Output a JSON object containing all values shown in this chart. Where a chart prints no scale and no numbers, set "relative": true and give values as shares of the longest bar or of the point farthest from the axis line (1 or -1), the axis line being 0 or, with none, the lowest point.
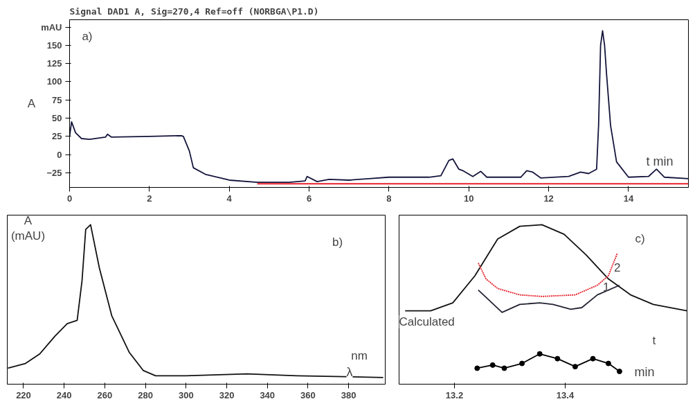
{
  "chart_data": [
    {
      "type": "line",
      "title": "Signal DAD1 A, Sig=270,4 Ref=off (NORBGA\\P1.D)",
      "xlabel": "t min",
      "ylabel": "A",
      "annotations": [
        "a)"
      ],
      "xlim": [
        0,
        15.5
      ],
      "ylim": [
        -45,
        185
      ],
      "xticks": [
        0,
        2,
        4,
        6,
        8,
        10,
        12,
        14
      ],
      "yticks": [
        -25,
        0,
        25,
        50,
        75,
        100,
        125,
        150,
        {
          "value": 175,
          "label": "mAU"
        }
      ],
      "grid": false,
      "series": [
        {
          "color": "#14143c",
          "x": [
            0,
            0.05,
            0.15,
            0.3,
            0.5,
            0.9,
            0.95,
            1.05,
            2,
            2.8,
            2.85,
            3.0,
            3.1,
            3.4,
            4.0,
            4.7,
            5.5,
            5.9,
            5.95,
            6.2,
            6.5,
            7,
            7.5,
            8.0,
            9.0,
            9.3,
            9.5,
            9.6,
            9.75,
            9.85,
            10.1,
            10.3,
            10.45,
            11.3,
            11.45,
            11.6,
            11.8,
            12.5,
            12.8,
            13.0,
            13.2,
            13.25,
            13.3,
            13.35,
            13.4,
            13.45,
            13.55,
            13.7,
            14.0,
            14.5,
            14.7,
            14.9,
            15.5
          ],
          "values": [
            25,
            45,
            30,
            22,
            21,
            24,
            28,
            24,
            25,
            26,
            25,
            5,
            -18,
            -27,
            -35,
            -38,
            -38,
            -36,
            -30,
            -37,
            -34,
            -35,
            -33,
            -31,
            -31,
            -29,
            -8,
            -6,
            -20,
            -22,
            -30,
            -23,
            -31,
            -31,
            -22,
            -24,
            -32,
            -30,
            -24,
            -26,
            -20,
            40,
            150,
            170,
            150,
            110,
            40,
            -10,
            -31,
            -30,
            -20,
            -31,
            -33
          ]
        },
        {
          "color": "#e8202a",
          "x": [
            4.7,
            15.5
          ],
          "values": [
            -40,
            -40
          ]
        }
      ]
    },
    {
      "type": "line",
      "relative": true,
      "xlabel": "λ",
      "ylabel": "A (mAU)",
      "annotations": [
        "b)",
        "nm"
      ],
      "xlim": [
        212,
        398
      ],
      "xticks": [
        220,
        240,
        260,
        280,
        300,
        320,
        340,
        360,
        380
      ],
      "tick_labels": "x",
      "grid": false,
      "series": [
        {
          "color": "#111111",
          "x": [
            212.3,
            221,
            228,
            235.4,
            241.5,
            246.4,
            248.8,
            250.6,
            253,
            257.3,
            263.4,
            272,
            279,
            285,
            300,
            330,
            354.5,
            397
          ],
          "values": [
            0.1,
            0.13,
            0.19,
            0.3,
            0.38,
            0.4,
            0.65,
            0.97,
            1.0,
            0.73,
            0.43,
            0.2,
            0.085,
            0.053,
            0.053,
            0.065,
            0.053,
            0.042
          ]
        }
      ]
    },
    {
      "type": "line",
      "relative": true,
      "xlabel": "min",
      "annotations": [
        "c)",
        "Calculated",
        "t"
      ],
      "xlim": [
        13.1,
        13.62
      ],
      "xticks": [
        13.2,
        13.4
      ],
      "tick_labels": "x",
      "grid": false,
      "series": [
        {
          "color": "#111111",
          "x": [
            13.111,
            13.157,
            13.197,
            13.237,
            13.278,
            13.318,
            13.358,
            13.398,
            13.438,
            13.478,
            13.518,
            13.559,
            13.62
          ],
          "values": [
            0.46,
            0.46,
            0.51,
            0.68,
            0.91,
            0.99,
            1.0,
            0.94,
            0.81,
            0.66,
            0.56,
            0.5,
            0.46
          ]
        },
        {
          "name": "2",
          "color": "#e8202a",
          "line_style": "dotted",
          "x": [
            13.243,
            13.257,
            13.278,
            13.318,
            13.358,
            13.418,
            13.458,
            13.478,
            13.494
          ],
          "values": [
            0.76,
            0.66,
            0.6,
            0.56,
            0.55,
            0.56,
            0.62,
            0.68,
            0.82
          ]
        },
        {
          "name": "1",
          "color": "#222233",
          "x": [
            13.243,
            13.286,
            13.318,
            13.354,
            13.378,
            13.41,
            13.43,
            13.458,
            13.498
          ],
          "values": [
            0.59,
            0.45,
            0.5,
            0.51,
            0.5,
            0.47,
            0.48,
            0.56,
            0.62
          ]
        },
        {
          "color": "#000000",
          "marker": "circle",
          "x": [
            13.241,
            13.269,
            13.29,
            13.322,
            13.354,
            13.386,
            13.418,
            13.45,
            13.478,
            13.498
          ],
          "values": [
            0.1,
            0.12,
            0.1,
            0.13,
            0.19,
            0.16,
            0.11,
            0.16,
            0.13,
            0.08
          ]
        }
      ]
    }
  ]
}
